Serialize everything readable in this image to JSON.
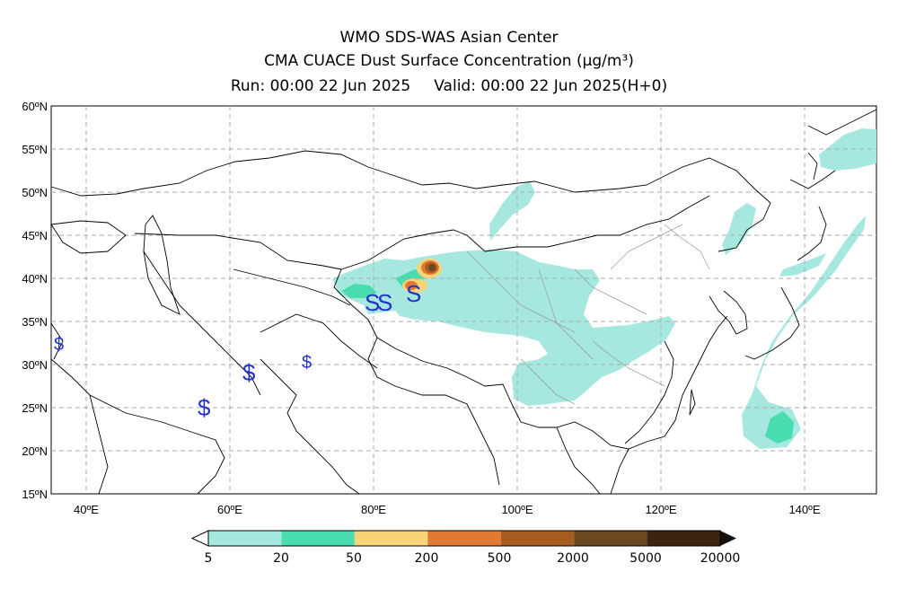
{
  "header": {
    "line1": "WMO SDS-WAS Asian Center",
    "line2_prefix": "CMA CUACE Dust Surface Concentration ",
    "unit": "(μg/m³)",
    "run": "Run: 00:00 22 Jun 2025",
    "valid": "Valid: 00:00 22 Jun 2025(H+0)"
  },
  "map": {
    "lon_labels": [
      "40ºE",
      "60ºE",
      "80ºE",
      "100ºE",
      "120ºE",
      "140ºE"
    ],
    "lat_labels": [
      "60ºN",
      "55ºN",
      "50ºN",
      "45ºN",
      "40ºN",
      "35ºN",
      "30ºN",
      "25ºN",
      "20ºN",
      "15ºN"
    ],
    "lon_range": [
      35,
      150
    ],
    "lat_range": [
      15,
      60
    ],
    "grid": true,
    "symbols": {
      "dust": "S",
      "sand": "$"
    }
  },
  "colorbar": {
    "levels": [
      "5",
      "20",
      "50",
      "200",
      "500",
      "2000",
      "5000",
      "20000"
    ],
    "colors": [
      "#a6e8df",
      "#48dcae",
      "#f8d478",
      "#e07a32",
      "#a85d20",
      "#6b4722",
      "#3d2410"
    ]
  }
}
